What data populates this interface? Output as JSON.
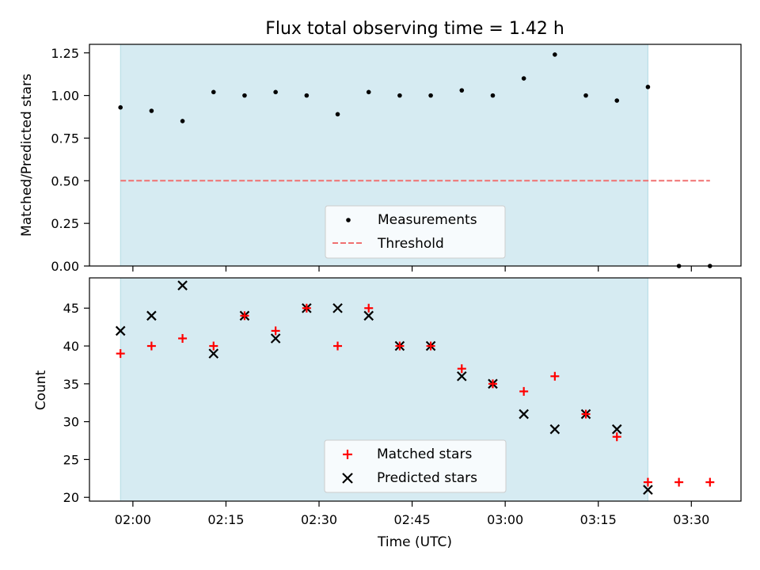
{
  "chart_data": [
    {
      "type": "scatter",
      "title": "Flux total observing time = 1.42 h",
      "xlabel": "",
      "ylabel": "Matched/Predicted stars",
      "ylim": [
        0,
        1.3
      ],
      "yticks": [
        "0.00",
        "0.25",
        "0.50",
        "0.75",
        "1.00",
        "1.25"
      ],
      "ytick_values": [
        0,
        0.25,
        0.5,
        0.75,
        1.0,
        1.25
      ],
      "x_shared": [
        "01:58",
        "02:03",
        "02:08",
        "02:13",
        "02:18",
        "02:23",
        "02:28",
        "02:33",
        "02:38",
        "02:43",
        "02:48",
        "02:53",
        "02:58",
        "03:03",
        "03:08",
        "03:13",
        "03:18",
        "03:23",
        "03:28",
        "03:33"
      ],
      "series": [
        {
          "name": "Measurements",
          "x": [
            "01:58",
            "02:03",
            "02:08",
            "02:13",
            "02:18",
            "02:23",
            "02:28",
            "02:33",
            "02:38",
            "02:43",
            "02:48",
            "02:53",
            "02:58",
            "03:03",
            "03:08",
            "03:13",
            "03:18",
            "03:23",
            "03:28",
            "03:33"
          ],
          "values": [
            0.93,
            0.91,
            0.85,
            1.02,
            1.0,
            1.02,
            1.0,
            0.89,
            1.02,
            1.0,
            1.0,
            1.03,
            1.0,
            1.1,
            1.24,
            1.0,
            0.97,
            1.05,
            0.0,
            0.0
          ],
          "color": "#000000",
          "marker": "dot"
        },
        {
          "name": "Threshold",
          "x": [
            "01:58",
            "03:33"
          ],
          "values": [
            0.5,
            0.5
          ],
          "color": "#f07070",
          "style": "dashed"
        }
      ],
      "shaded_region": {
        "x": [
          "01:58",
          "03:23"
        ],
        "color": "#add8e6"
      },
      "legend_position": "lower center",
      "grid": false
    },
    {
      "type": "scatter",
      "title": "",
      "xlabel": "Time (UTC)",
      "ylabel": "Count",
      "ylim": [
        19.5,
        49
      ],
      "yticks": [
        "20",
        "25",
        "30",
        "35",
        "40",
        "45"
      ],
      "ytick_values": [
        20,
        25,
        30,
        35,
        40,
        45
      ],
      "xticks": [
        "02:00",
        "02:15",
        "02:30",
        "02:45",
        "03:00",
        "03:15",
        "03:30"
      ],
      "xlim": [
        "01:53",
        "03:38"
      ],
      "series": [
        {
          "name": "Matched stars",
          "x": [
            "01:58",
            "02:03",
            "02:08",
            "02:13",
            "02:18",
            "02:23",
            "02:28",
            "02:33",
            "02:38",
            "02:43",
            "02:48",
            "02:53",
            "02:58",
            "03:03",
            "03:08",
            "03:13",
            "03:18",
            "03:23",
            "03:28",
            "03:33"
          ],
          "values": [
            39,
            40,
            41,
            40,
            44,
            42,
            45,
            40,
            45,
            40,
            40,
            37,
            35,
            34,
            36,
            31,
            28,
            22,
            22,
            22
          ],
          "color": "#ff0000",
          "marker": "plus"
        },
        {
          "name": "Predicted stars",
          "x": [
            "01:58",
            "02:03",
            "02:08",
            "02:13",
            "02:18",
            "02:23",
            "02:28",
            "02:33",
            "02:38",
            "02:43",
            "02:48",
            "02:53",
            "02:58",
            "03:03",
            "03:08",
            "03:13",
            "03:18",
            "03:23"
          ],
          "values": [
            42,
            44,
            48,
            39,
            44,
            41,
            45,
            45,
            44,
            40,
            40,
            36,
            35,
            31,
            29,
            31,
            29,
            21
          ],
          "color": "#000000",
          "marker": "x"
        }
      ],
      "shaded_region": {
        "x": [
          "01:58",
          "03:23"
        ],
        "color": "#add8e6"
      },
      "legend_position": "lower center",
      "grid": false
    }
  ]
}
